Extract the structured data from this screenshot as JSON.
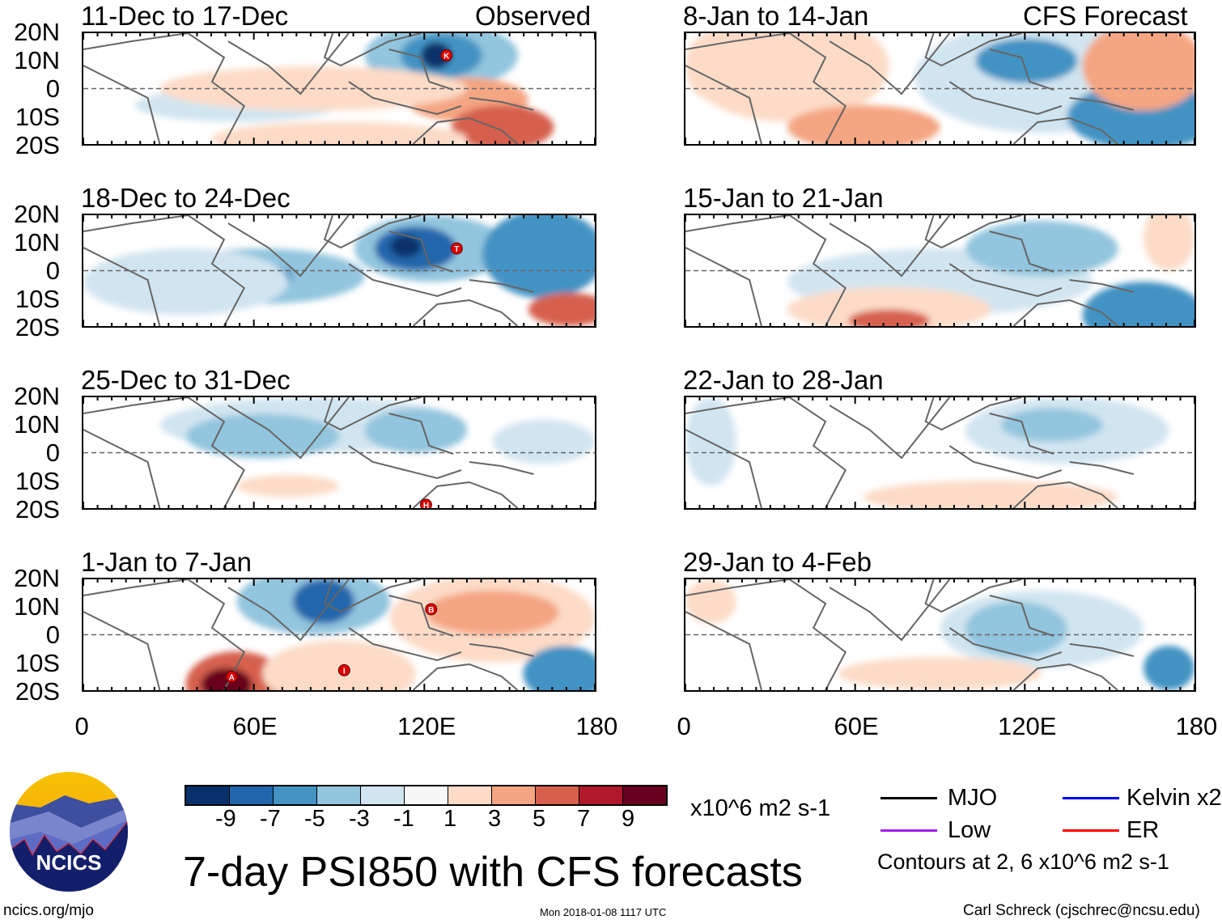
{
  "title": "7-day PSI850 with CFS forecasts",
  "observed_label": "Observed",
  "forecast_label": "CFS Forecast",
  "lat_labels": [
    "20N",
    "10N",
    "0",
    "10S",
    "20S"
  ],
  "lon_labels": [
    "0",
    "60E",
    "120E",
    "180"
  ],
  "panels": [
    {
      "title": "11-Dec to 17-Dec",
      "column": "observed",
      "storms": [
        "K"
      ]
    },
    {
      "title": "18-Dec to 24-Dec",
      "column": "observed",
      "storms": [
        "T"
      ]
    },
    {
      "title": "25-Dec to 31-Dec",
      "column": "observed",
      "storms": [
        "H"
      ]
    },
    {
      "title": "1-Jan to 7-Jan",
      "column": "observed",
      "storms": [
        "B",
        "I",
        "A"
      ]
    },
    {
      "title": "8-Jan to 14-Jan",
      "column": "forecast",
      "storms": []
    },
    {
      "title": "15-Jan to 21-Jan",
      "column": "forecast",
      "storms": []
    },
    {
      "title": "22-Jan to 28-Jan",
      "column": "forecast",
      "storms": []
    },
    {
      "title": "29-Jan to 4-Feb",
      "column": "forecast",
      "storms": []
    }
  ],
  "colorbar": {
    "colors": [
      "#08306b",
      "#2166ac",
      "#4393c3",
      "#92c5de",
      "#d1e5f0",
      "#f7f7f7",
      "#fddbc7",
      "#f4a582",
      "#d6604d",
      "#b2182b",
      "#67001f"
    ],
    "labels": [
      "-9",
      "-7",
      "-5",
      "-3",
      "-1",
      "1",
      "3",
      "5",
      "7",
      "9"
    ],
    "units": "x10^6 m2 s-1"
  },
  "legend": {
    "items": [
      {
        "label": "MJO",
        "color": "#000000"
      },
      {
        "label": "Kelvin x2",
        "color": "#0000ff"
      },
      {
        "label": "Low",
        "color": "#a020f0"
      },
      {
        "label": "ER",
        "color": "#ff0000"
      }
    ],
    "note": "Contours at 2, 6 x10^6 m2 s-1"
  },
  "logo_text": "NCICS",
  "footer": {
    "url": "ncics.org/mjo",
    "timestamp": "Mon 2018-01-08 1117 UTC",
    "author": "Carl Schreck (cjschrec@ncsu.edu)"
  }
}
